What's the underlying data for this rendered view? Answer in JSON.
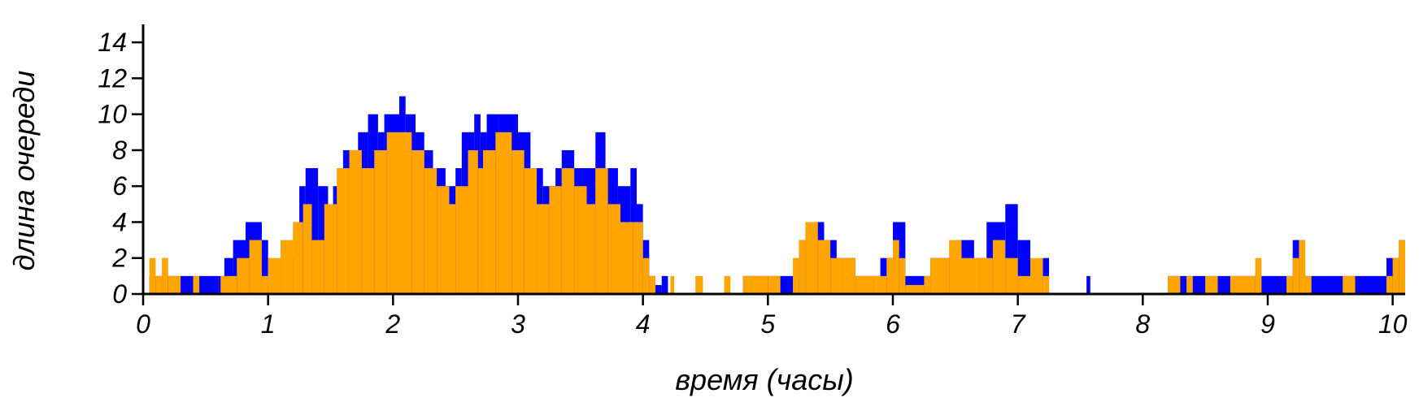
{
  "chart_data": {
    "type": "area",
    "title": "",
    "xlabel": "время (часы)",
    "ylabel": "длина очереди",
    "xlim": [
      0,
      10.1
    ],
    "ylim": [
      0,
      15
    ],
    "x_ticks": [
      0,
      1,
      2,
      3,
      4,
      5,
      6,
      7,
      8,
      9,
      10
    ],
    "y_ticks": [
      0,
      2,
      4,
      6,
      8,
      10,
      12,
      14
    ],
    "grid": false,
    "colors": {
      "series_a": "#0000ff",
      "series_b": "#ffa500"
    },
    "series": [
      {
        "color": "#0000ff",
        "step_points": [
          [
            0.05,
            1
          ],
          [
            0.6,
            1
          ],
          [
            0.65,
            2
          ],
          [
            0.72,
            3
          ],
          [
            0.82,
            4
          ],
          [
            0.95,
            3
          ],
          [
            1.0,
            0.5
          ],
          [
            1.02,
            1
          ],
          [
            1.1,
            2
          ],
          [
            1.2,
            4
          ],
          [
            1.25,
            6
          ],
          [
            1.3,
            7
          ],
          [
            1.4,
            6
          ],
          [
            1.48,
            4
          ],
          [
            1.52,
            6
          ],
          [
            1.6,
            8
          ],
          [
            1.72,
            9
          ],
          [
            1.8,
            10
          ],
          [
            1.88,
            9
          ],
          [
            1.93,
            10
          ],
          [
            2.05,
            11
          ],
          [
            2.1,
            10
          ],
          [
            2.18,
            9
          ],
          [
            2.25,
            8
          ],
          [
            2.32,
            7
          ],
          [
            2.42,
            6
          ],
          [
            2.5,
            7
          ],
          [
            2.55,
            9
          ],
          [
            2.65,
            10
          ],
          [
            2.7,
            9
          ],
          [
            2.75,
            10
          ],
          [
            2.85,
            10
          ],
          [
            3.0,
            9
          ],
          [
            3.1,
            7
          ],
          [
            3.2,
            6
          ],
          [
            3.3,
            7
          ],
          [
            3.35,
            8
          ],
          [
            3.45,
            7
          ],
          [
            3.55,
            7
          ],
          [
            3.62,
            9
          ],
          [
            3.7,
            7
          ],
          [
            3.8,
            6
          ],
          [
            3.9,
            7
          ],
          [
            3.95,
            5
          ],
          [
            4.0,
            3
          ],
          [
            4.05,
            1
          ],
          [
            4.1,
            0.5
          ],
          [
            4.15,
            1
          ],
          [
            4.2,
            0
          ],
          [
            4.8,
            1
          ],
          [
            5.2,
            1
          ],
          [
            5.25,
            3
          ],
          [
            5.35,
            4
          ],
          [
            5.45,
            3
          ],
          [
            5.55,
            2
          ],
          [
            5.7,
            1
          ],
          [
            5.9,
            2
          ],
          [
            6.0,
            4
          ],
          [
            6.1,
            1
          ],
          [
            6.3,
            2
          ],
          [
            6.5,
            3
          ],
          [
            6.65,
            2
          ],
          [
            6.75,
            4
          ],
          [
            6.9,
            5
          ],
          [
            7.0,
            3
          ],
          [
            7.1,
            1
          ],
          [
            7.2,
            2
          ],
          [
            7.25,
            0
          ],
          [
            7.55,
            1
          ],
          [
            7.58,
            0
          ],
          [
            8.2,
            1
          ],
          [
            8.6,
            1
          ],
          [
            8.95,
            1
          ],
          [
            9.2,
            3
          ],
          [
            9.3,
            1
          ],
          [
            9.65,
            1
          ],
          [
            9.95,
            2
          ],
          [
            10.05,
            3
          ],
          [
            10.1,
            0
          ]
        ]
      },
      {
        "color": "#ffa500",
        "step_points": [
          [
            0.05,
            2
          ],
          [
            0.1,
            1
          ],
          [
            0.15,
            2
          ],
          [
            0.2,
            1
          ],
          [
            0.3,
            0
          ],
          [
            0.4,
            1
          ],
          [
            0.45,
            0
          ],
          [
            0.62,
            1
          ],
          [
            0.75,
            2
          ],
          [
            0.85,
            3
          ],
          [
            0.95,
            1
          ],
          [
            1.0,
            2
          ],
          [
            1.1,
            3
          ],
          [
            1.2,
            4
          ],
          [
            1.28,
            5
          ],
          [
            1.35,
            3
          ],
          [
            1.45,
            5
          ],
          [
            1.55,
            7
          ],
          [
            1.65,
            8
          ],
          [
            1.75,
            7
          ],
          [
            1.85,
            8
          ],
          [
            1.95,
            9
          ],
          [
            2.05,
            9
          ],
          [
            2.15,
            8
          ],
          [
            2.25,
            7
          ],
          [
            2.35,
            6
          ],
          [
            2.45,
            5
          ],
          [
            2.5,
            6
          ],
          [
            2.6,
            8
          ],
          [
            2.68,
            7
          ],
          [
            2.72,
            8
          ],
          [
            2.82,
            9
          ],
          [
            2.95,
            8
          ],
          [
            3.05,
            7
          ],
          [
            3.15,
            5
          ],
          [
            3.25,
            6
          ],
          [
            3.35,
            7
          ],
          [
            3.45,
            6
          ],
          [
            3.55,
            5
          ],
          [
            3.62,
            7
          ],
          [
            3.72,
            5
          ],
          [
            3.82,
            4
          ],
          [
            3.92,
            4
          ],
          [
            4.0,
            2
          ],
          [
            4.05,
            1
          ],
          [
            4.1,
            0
          ],
          [
            4.22,
            1
          ],
          [
            4.25,
            0
          ],
          [
            4.42,
            1
          ],
          [
            4.48,
            0
          ],
          [
            4.65,
            1
          ],
          [
            4.7,
            0
          ],
          [
            4.8,
            1
          ],
          [
            5.0,
            1
          ],
          [
            5.1,
            0
          ],
          [
            5.2,
            2
          ],
          [
            5.25,
            3
          ],
          [
            5.3,
            4
          ],
          [
            5.4,
            3
          ],
          [
            5.5,
            2
          ],
          [
            5.6,
            2
          ],
          [
            5.7,
            1
          ],
          [
            5.85,
            1
          ],
          [
            5.95,
            2
          ],
          [
            6.0,
            3
          ],
          [
            6.05,
            2
          ],
          [
            6.1,
            0.5
          ],
          [
            6.25,
            1
          ],
          [
            6.3,
            2
          ],
          [
            6.45,
            3
          ],
          [
            6.55,
            2
          ],
          [
            6.7,
            2
          ],
          [
            6.8,
            3
          ],
          [
            6.9,
            2
          ],
          [
            7.0,
            1
          ],
          [
            7.1,
            2
          ],
          [
            7.2,
            1
          ],
          [
            7.25,
            0
          ],
          [
            8.2,
            1
          ],
          [
            8.3,
            0
          ],
          [
            8.35,
            1
          ],
          [
            8.4,
            0
          ],
          [
            8.5,
            1
          ],
          [
            8.6,
            0
          ],
          [
            8.7,
            1
          ],
          [
            8.9,
            2
          ],
          [
            8.95,
            0
          ],
          [
            9.15,
            1
          ],
          [
            9.2,
            2
          ],
          [
            9.25,
            3
          ],
          [
            9.3,
            1
          ],
          [
            9.35,
            0
          ],
          [
            9.6,
            1
          ],
          [
            9.7,
            0
          ],
          [
            9.95,
            1
          ],
          [
            10.0,
            2
          ],
          [
            10.05,
            3
          ],
          [
            10.1,
            0
          ]
        ]
      }
    ]
  }
}
